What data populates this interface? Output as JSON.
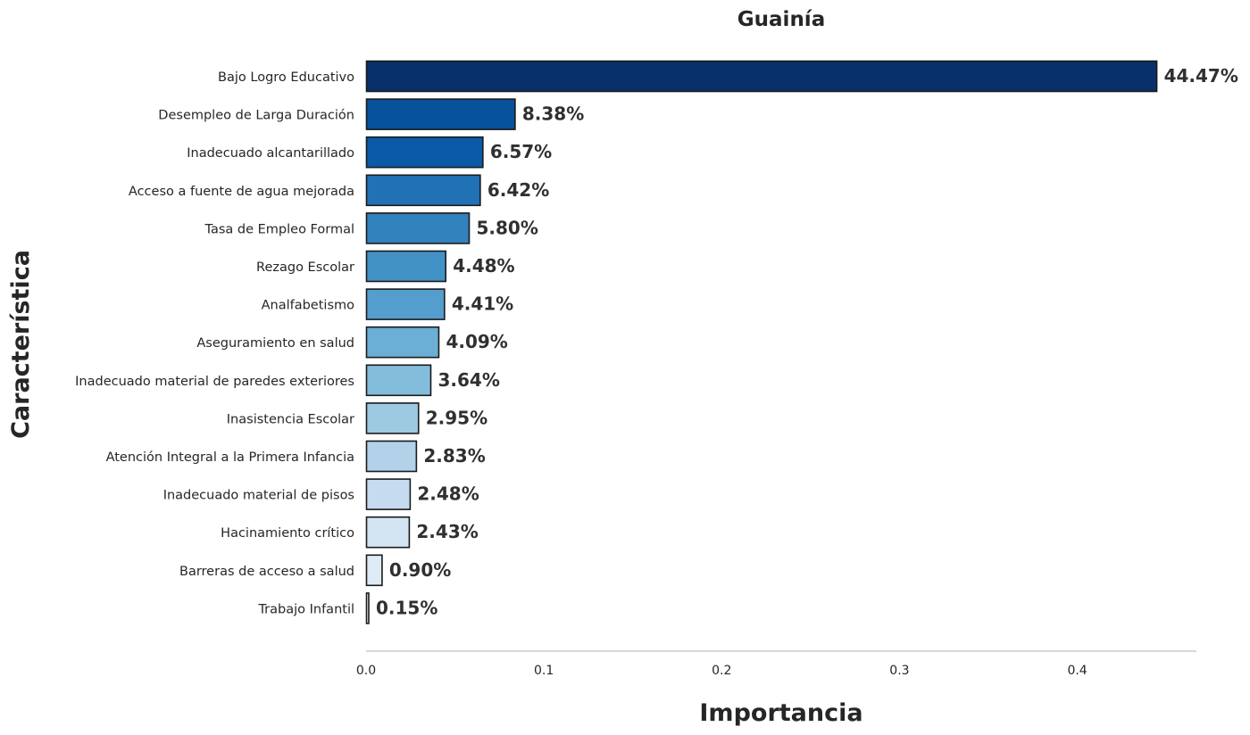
{
  "chart_data": {
    "type": "bar",
    "orientation": "horizontal",
    "title": "Guainía",
    "xlabel": "Importancia",
    "ylabel": "Característica",
    "xlim": [
      0,
      0.467
    ],
    "xticks": [
      "0.0",
      "0.1",
      "0.2",
      "0.3",
      "0.4"
    ],
    "xtick_values": [
      0.0,
      0.1,
      0.2,
      0.3,
      0.4
    ],
    "grid": false,
    "categories": [
      "Bajo Logro Educativo",
      "Desempleo de Larga Duración",
      "Inadecuado alcantarillado",
      "Acceso a fuente de agua mejorada",
      "Tasa de Empleo Formal",
      "Rezago Escolar",
      "Analfabetismo",
      "Aseguramiento en salud",
      "Inadecuado material de paredes exteriores",
      "Inasistencia Escolar",
      "Atención Integral a la Primera Infancia",
      "Inadecuado material de pisos",
      "Hacinamiento crítico",
      "Barreras de acceso a salud",
      "Trabajo Infantil"
    ],
    "values": [
      0.4447,
      0.0838,
      0.0657,
      0.0642,
      0.058,
      0.0448,
      0.0441,
      0.0409,
      0.0364,
      0.0295,
      0.0283,
      0.0248,
      0.0243,
      0.009,
      0.0015
    ],
    "data_labels": [
      "44.47%",
      "8.38%",
      "6.57%",
      "6.42%",
      "5.80%",
      "4.48%",
      "4.41%",
      "4.09%",
      "3.64%",
      "2.95%",
      "2.83%",
      "2.48%",
      "2.43%",
      "0.90%",
      "0.15%"
    ],
    "colors": [
      "#08306b",
      "#08519c",
      "#0b5aa8",
      "#2171b5",
      "#3182bd",
      "#4292c6",
      "#539ecd",
      "#6baed6",
      "#84bcdb",
      "#9ecae1",
      "#b1d2e8",
      "#c6dbef",
      "#d3e4f3",
      "#deebf7",
      "#f7fbff"
    ],
    "bar_edge_color": "#1a1a1a",
    "axis_line_color": "#cccccc"
  }
}
